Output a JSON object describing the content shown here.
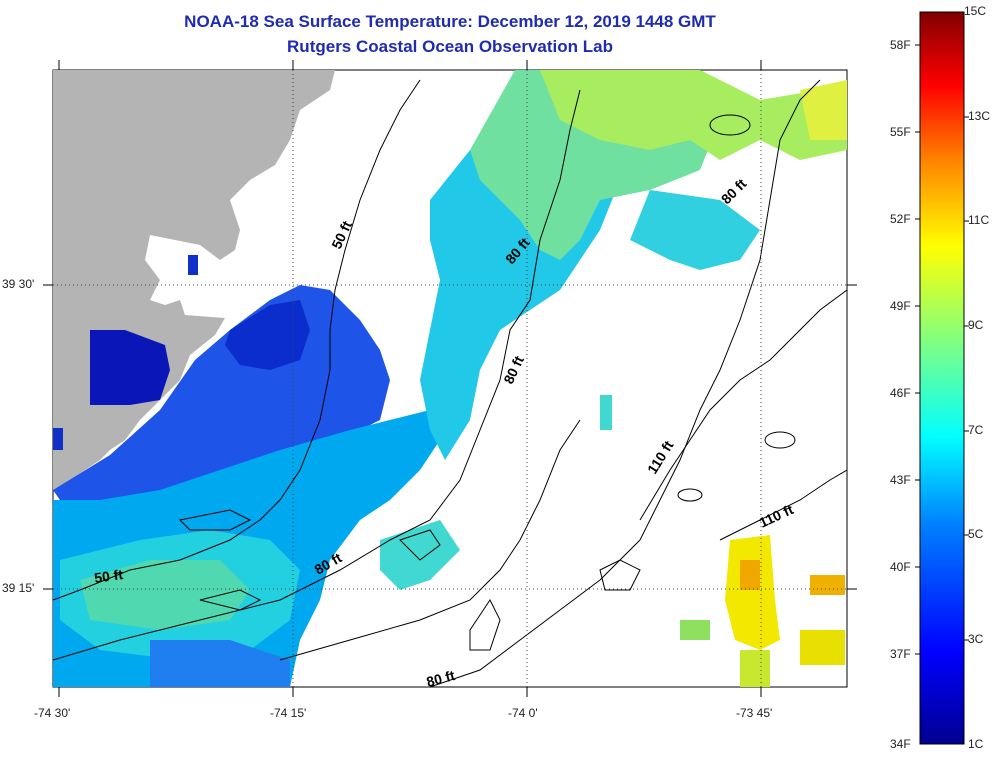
{
  "title": {
    "line1": "NOAA-18 Sea Surface Temperature:  December 12, 2019 1448 GMT",
    "line2": "Rutgers Coastal Ocean Observation Lab"
  },
  "axes": {
    "longitude_labels": [
      "-74 30'",
      "-74 15'",
      "-74 0'",
      "-73 45'"
    ],
    "latitude_labels": [
      "39 30'",
      "39 15'"
    ]
  },
  "contour_labels": {
    "c50_top": "50 ft",
    "c50_left": "50 ft",
    "c80_a": "80 ft",
    "c80_b": "80 ft",
    "c80_c": "80 ft",
    "c80_d": "80 ft",
    "c80_e": "80 ft",
    "c110_a": "110 ft",
    "c110_b": "110 ft"
  },
  "colorbar": {
    "fahrenheit_labels": [
      "58F",
      "55F",
      "52F",
      "49F",
      "46F",
      "43F",
      "40F",
      "37F",
      "34F"
    ],
    "celsius_labels": [
      "15C",
      "13C",
      "11C",
      "9C",
      "7C",
      "5C",
      "3C",
      "1C"
    ],
    "range_c": [
      1,
      15
    ],
    "colors": [
      "#00008f",
      "#0000ff",
      "#0080ff",
      "#00ffff",
      "#80ff80",
      "#ffff00",
      "#ff8000",
      "#ff0000",
      "#800000"
    ]
  },
  "colors": {
    "land": "#b4b4b4",
    "title": "#1f2bb0"
  }
}
